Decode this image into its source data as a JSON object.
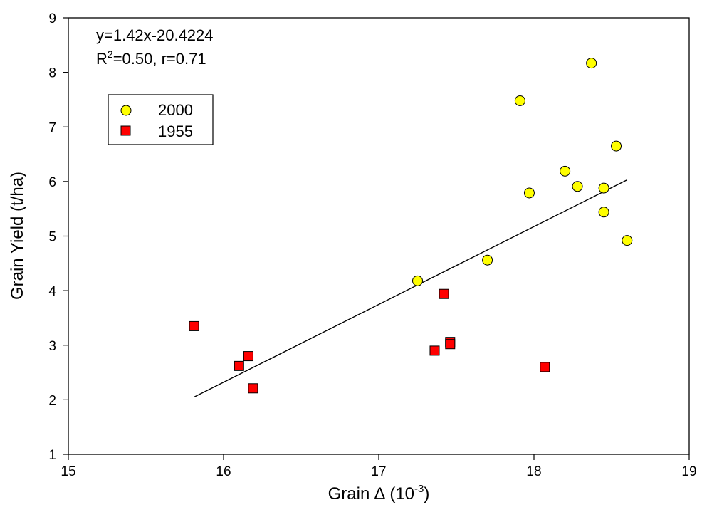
{
  "chart_data": {
    "type": "scatter",
    "xlabel_main": "Grain",
    "xlabel_symbol": "Δ",
    "xlabel_units": "(10",
    "xlabel_exp": "-3",
    "xlabel_close": ")",
    "ylabel": "Grain Yield (t/ha)",
    "xlim": [
      15,
      19
    ],
    "ylim": [
      1,
      9
    ],
    "xticks": [
      15,
      16,
      17,
      18,
      19
    ],
    "yticks": [
      1,
      2,
      3,
      4,
      5,
      6,
      7,
      8,
      9
    ],
    "grid": false,
    "legend_position": "top-left",
    "annotation": {
      "equation": "y=1.42x-20.4224",
      "r2_prefix": "R",
      "r2_sup": "2",
      "r2_rest": "=0.50, r=0.71"
    },
    "fit_line": {
      "x": [
        15.81,
        18.6
      ],
      "y": [
        2.05,
        6.03
      ]
    },
    "series": [
      {
        "name": "2000",
        "marker": "circle",
        "color": "#ffff00",
        "points": [
          {
            "x": 17.25,
            "y": 4.18
          },
          {
            "x": 17.7,
            "y": 4.56
          },
          {
            "x": 17.91,
            "y": 7.48
          },
          {
            "x": 17.97,
            "y": 5.79
          },
          {
            "x": 18.2,
            "y": 6.19
          },
          {
            "x": 18.28,
            "y": 5.91
          },
          {
            "x": 18.37,
            "y": 8.17
          },
          {
            "x": 18.45,
            "y": 5.88
          },
          {
            "x": 18.45,
            "y": 5.44
          },
          {
            "x": 18.53,
            "y": 6.65
          },
          {
            "x": 18.6,
            "y": 4.92
          }
        ]
      },
      {
        "name": "1955",
        "marker": "square",
        "color": "#ff0000",
        "points": [
          {
            "x": 15.81,
            "y": 3.35
          },
          {
            "x": 16.1,
            "y": 2.62
          },
          {
            "x": 16.16,
            "y": 2.8
          },
          {
            "x": 16.19,
            "y": 2.21
          },
          {
            "x": 17.36,
            "y": 2.9
          },
          {
            "x": 17.42,
            "y": 3.94
          },
          {
            "x": 17.46,
            "y": 3.06
          },
          {
            "x": 17.46,
            "y": 3.02
          },
          {
            "x": 18.07,
            "y": 2.6
          }
        ]
      }
    ]
  }
}
